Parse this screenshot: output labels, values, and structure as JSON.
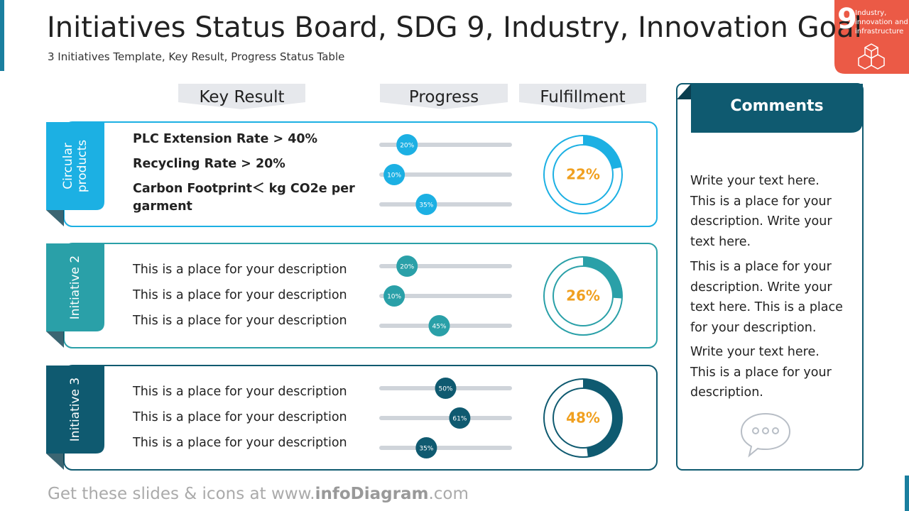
{
  "header": {
    "title": "Initiatives Status Board, SDG 9, Industry, Innovation Goal",
    "subtitle": "3 Initiatives Template, Key Result, Progress Status Table"
  },
  "badge": {
    "number": "9",
    "text": "Industry, innovation and infrastructure"
  },
  "columns": [
    "Key Result",
    "Progress",
    "Fulfillment"
  ],
  "rows": [
    {
      "label": "Circular products",
      "color": "#1cb0e3",
      "key_results_bold": true,
      "key_results": [
        "PLC Extension Rate > 40%",
        "Recycling Rate > 20%",
        "Carbon Footprint＜ kg CO2e per garment"
      ],
      "progress": [
        20,
        10,
        35
      ],
      "progress_labels": [
        "20%",
        "10%",
        "35%"
      ],
      "fulfillment": 22,
      "fulfillment_label": "22%"
    },
    {
      "label": "Initiative 2",
      "color": "#2aa0a8",
      "key_results_bold": false,
      "key_results": [
        "This is a place for your description",
        "This is a place for your description",
        "This is a place for your description"
      ],
      "progress": [
        20,
        10,
        45
      ],
      "progress_labels": [
        "20%",
        "10%",
        "45%"
      ],
      "fulfillment": 26,
      "fulfillment_label": "26%"
    },
    {
      "label": "Initiative 3",
      "color": "#0f5a70",
      "key_results_bold": false,
      "key_results": [
        "This is a place for your description",
        "This is a place for your description",
        "This is a place for your description"
      ],
      "progress": [
        50,
        61,
        35
      ],
      "progress_labels": [
        "50%",
        "61%",
        "35%"
      ],
      "fulfillment": 48,
      "fulfillment_label": "48%"
    }
  ],
  "comments": {
    "title": "Comments",
    "paragraphs": [
      "Write your text here. This is a place for your description. Write your text here.",
      "This is a place for your description. Write your text here. This is a place for your description.",
      "Write your text here. This is a place for your description."
    ]
  },
  "footer": [
    "Get these slides & icons at www.",
    "infoDiagram",
    ".com"
  ]
}
